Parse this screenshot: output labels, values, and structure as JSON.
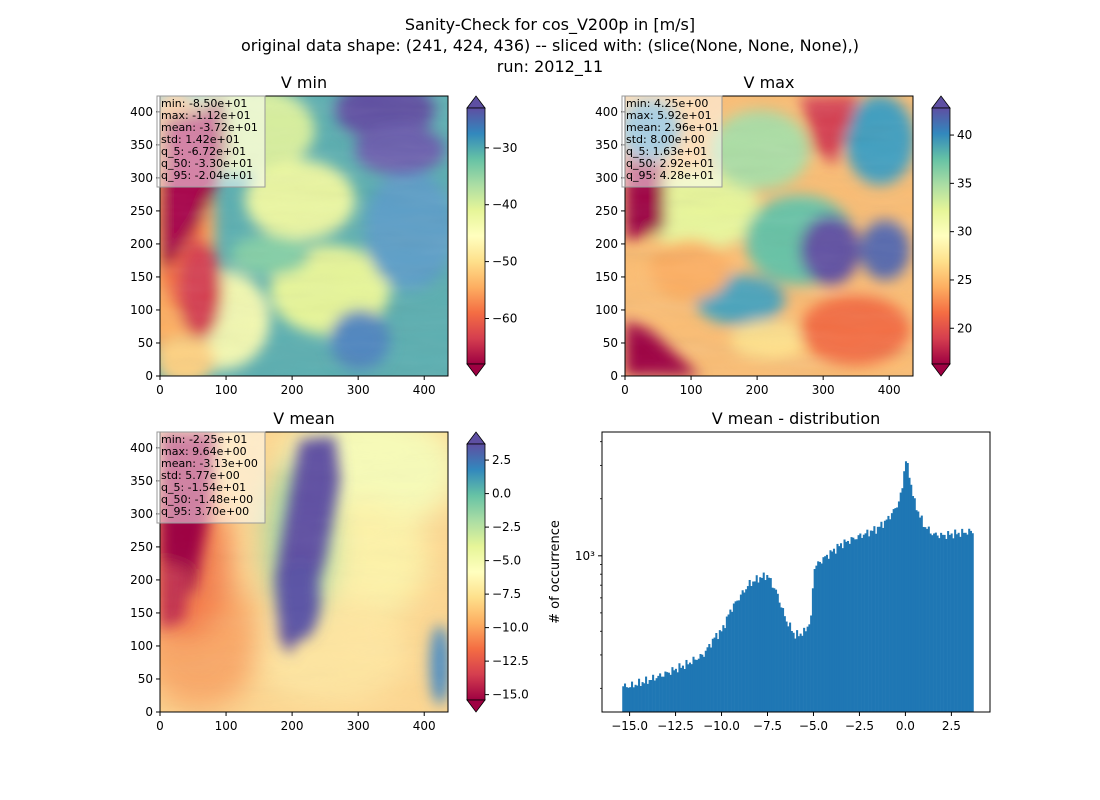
{
  "figure": {
    "suptitle_lines": [
      "Sanity-Check for cos_V200p in [m/s]",
      "original data shape: (241, 424, 436) -- sliced with: (slice(None, None, None),)",
      "run: 2012_11"
    ]
  },
  "colormap": {
    "name": "Spectral",
    "stops": [
      "#9e0142",
      "#d53e4f",
      "#f46d43",
      "#fdae61",
      "#fee08b",
      "#ffffbf",
      "#e6f598",
      "#abdda4",
      "#66c2a5",
      "#3288bd",
      "#5e4fa2"
    ]
  },
  "chart_data": [
    {
      "type": "heatmap",
      "title": "V min",
      "xlim": [
        0,
        436
      ],
      "ylim": [
        0,
        424
      ],
      "xticks": [
        "0",
        "100",
        "200",
        "300",
        "400"
      ],
      "yticks": [
        "0",
        "50",
        "100",
        "150",
        "200",
        "250",
        "300",
        "350",
        "400"
      ],
      "colorbar": {
        "range": [
          -68,
          -23
        ],
        "ticks": [
          "-60",
          "-50",
          "-40",
          "-30"
        ],
        "tick_values": [
          -60,
          -50,
          -40,
          -30
        ],
        "extend": "both"
      },
      "stats": [
        "min: -8.50e+01",
        "max: -1.12e+01",
        "mean: -3.72e+01",
        "std: 1.42e+01",
        "q_5: -6.72e+01",
        "q_50: -3.30e+01",
        "q_95: -2.04e+01"
      ]
    },
    {
      "type": "heatmap",
      "title": "V max",
      "xlim": [
        0,
        436
      ],
      "ylim": [
        0,
        424
      ],
      "xticks": [
        "0",
        "100",
        "200",
        "300",
        "400"
      ],
      "yticks": [
        "0",
        "50",
        "100",
        "150",
        "200",
        "250",
        "300",
        "350",
        "400"
      ],
      "colorbar": {
        "range": [
          16.3,
          42.8
        ],
        "ticks": [
          "20",
          "25",
          "30",
          "35",
          "40"
        ],
        "tick_values": [
          20,
          25,
          30,
          35,
          40
        ],
        "extend": "both"
      },
      "stats": [
        "min: 4.25e+00",
        "max: 5.92e+01",
        "mean: 2.96e+01",
        "std: 8.00e+00",
        "q_5: 1.63e+01",
        "q_50: 2.92e+01",
        "q_95: 4.28e+01"
      ]
    },
    {
      "type": "heatmap",
      "title": "V mean",
      "xlim": [
        0,
        436
      ],
      "ylim": [
        0,
        424
      ],
      "xticks": [
        "0",
        "100",
        "200",
        "300",
        "400"
      ],
      "yticks": [
        "0",
        "50",
        "100",
        "150",
        "200",
        "250",
        "300",
        "350",
        "400"
      ],
      "colorbar": {
        "range": [
          -15.4,
          3.7
        ],
        "ticks": [
          "-15.0",
          "-12.5",
          "-10.0",
          "-7.5",
          "-5.0",
          "-2.5",
          "0.0",
          "2.5"
        ],
        "tick_values": [
          -15,
          -12.5,
          -10,
          -7.5,
          -5,
          -2.5,
          0,
          2.5
        ],
        "extend": "both"
      },
      "stats": [
        "min: -2.25e+01",
        "max: 9.64e+00",
        "mean: -3.13e+00",
        "std: 5.77e+00",
        "q_5: -1.54e+01",
        "q_50: -1.48e+00",
        "q_95: 3.70e+00"
      ]
    },
    {
      "type": "bar",
      "title": "V mean - distribution",
      "ylabel": "# of occurrence",
      "yscale": "log",
      "xlim": [
        -16.5,
        4.6
      ],
      "ylim": [
        150,
        4500
      ],
      "xticks": [
        "-15.0",
        "-12.5",
        "-10.0",
        "-7.5",
        "-5.0",
        "-2.5",
        "0.0",
        "2.5"
      ],
      "xtick_values": [
        -15,
        -12.5,
        -10,
        -7.5,
        -5,
        -2.5,
        0,
        2.5
      ],
      "ytick_label": "10³",
      "ytick_value": 1000,
      "bar_color": "#1f77b4",
      "anchors": [
        [
          -15.4,
          205
        ],
        [
          -15.0,
          205
        ],
        [
          -14.0,
          220
        ],
        [
          -13.0,
          240
        ],
        [
          -12.0,
          265
        ],
        [
          -11.0,
          300
        ],
        [
          -10.3,
          380
        ],
        [
          -10.0,
          400
        ],
        [
          -9.5,
          520
        ],
        [
          -9.0,
          610
        ],
        [
          -8.5,
          710
        ],
        [
          -8.0,
          760
        ],
        [
          -7.5,
          790
        ],
        [
          -7.0,
          640
        ],
        [
          -6.5,
          460
        ],
        [
          -6.0,
          380
        ],
        [
          -5.5,
          395
        ],
        [
          -5.1,
          470
        ],
        [
          -5.0,
          860
        ],
        [
          -4.5,
          960
        ],
        [
          -4.0,
          1050
        ],
        [
          -3.5,
          1150
        ],
        [
          -3.0,
          1210
        ],
        [
          -2.5,
          1270
        ],
        [
          -2.0,
          1330
        ],
        [
          -1.5,
          1400
        ],
        [
          -1.0,
          1550
        ],
        [
          -0.5,
          1800
        ],
        [
          -0.2,
          2150
        ],
        [
          0.0,
          3300
        ],
        [
          0.2,
          2700
        ],
        [
          0.5,
          1900
        ],
        [
          1.0,
          1450
        ],
        [
          1.5,
          1300
        ],
        [
          2.0,
          1280
        ],
        [
          2.5,
          1300
        ],
        [
          3.0,
          1320
        ],
        [
          3.7,
          1350
        ]
      ]
    }
  ]
}
